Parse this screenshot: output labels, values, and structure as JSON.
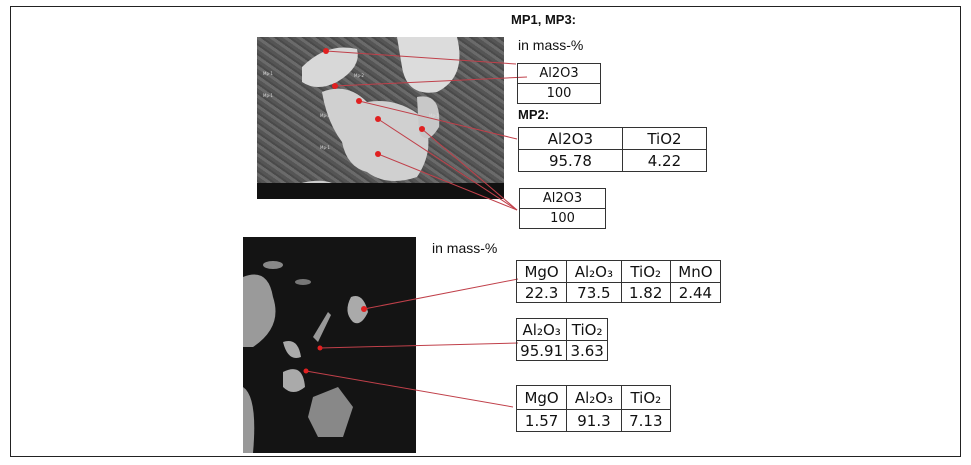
{
  "top": {
    "heading_mp13": "MP1, MP3:",
    "unit": "in mass-%",
    "heading_mp2": "MP2:",
    "image_labels": [
      "Mp-1",
      "Mp-1",
      "Mp-2",
      "Mp-3",
      "Mp-1",
      "Mp-1"
    ],
    "table1": {
      "headers": [
        "Al2O3"
      ],
      "values": [
        "100"
      ]
    },
    "table2": {
      "headers": [
        "Al2O3",
        "TiO2"
      ],
      "values": [
        "95.78",
        "4.22"
      ]
    },
    "table3": {
      "headers": [
        "Al2O3"
      ],
      "values": [
        "100"
      ]
    }
  },
  "bottom": {
    "unit": "in mass-%",
    "table1": {
      "headers": [
        "MgO",
        "Al₂O₃",
        "TiO₂",
        "MnO"
      ],
      "values": [
        "22.3",
        "73.5",
        "1.82",
        "2.44"
      ]
    },
    "table2": {
      "headers": [
        "Al₂O₃",
        "TiO₂"
      ],
      "values": [
        "95.91",
        "3.63"
      ]
    },
    "table3": {
      "headers": [
        "MgO",
        "Al₂O₃",
        "TiO₂"
      ],
      "values": [
        "1.57",
        "91.3",
        "7.13"
      ]
    }
  },
  "colors": {
    "marker": "#e02020",
    "leader_line": "#c0404a"
  }
}
